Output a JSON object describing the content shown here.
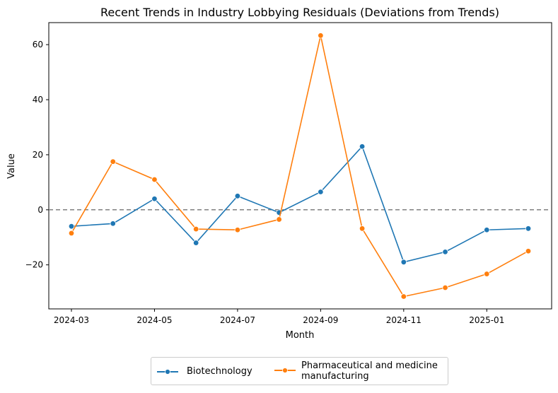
{
  "chart_data": {
    "type": "line",
    "title": "Recent Trends in Industry Lobbying Residuals (Deviations from Trends)",
    "xlabel": "Month",
    "ylabel": "Value",
    "x": [
      "2024-03",
      "2024-04",
      "2024-05",
      "2024-06",
      "2024-07",
      "2024-08",
      "2024-09",
      "2024-10",
      "2024-11",
      "2024-12",
      "2025-01",
      "2025-02"
    ],
    "x_ticks": [
      "2024-03",
      "2024-05",
      "2024-07",
      "2024-09",
      "2024-11",
      "2025-01"
    ],
    "y_ticks": [
      -20,
      0,
      20,
      40,
      60
    ],
    "y_tick_labels": [
      "−20",
      "0",
      "20",
      "40",
      "60"
    ],
    "ylim": [
      -36,
      68
    ],
    "grid": false,
    "reference_line": {
      "y": 0,
      "style": "dashed",
      "color": "#808080"
    },
    "legend_position": "bottom-center",
    "series": [
      {
        "name": "Biotechnology",
        "color": "#1f77b4",
        "values": [
          -6.0,
          -5.0,
          4.0,
          -12.0,
          5.0,
          -1.0,
          6.5,
          23.0,
          -19.0,
          -15.3,
          -7.3,
          -6.8
        ]
      },
      {
        "name": "Pharmaceutical and medicine manufacturing",
        "color": "#ff7f0e",
        "values": [
          -8.5,
          17.5,
          11.0,
          -7.0,
          -7.3,
          -3.5,
          63.3,
          -6.8,
          -31.5,
          -28.3,
          -23.3,
          -15.0
        ]
      }
    ]
  },
  "legend": {
    "items": [
      {
        "label_lines": [
          "Biotechnology"
        ]
      },
      {
        "label_lines": [
          "Pharmaceutical and medicine",
          "manufacturing"
        ]
      }
    ]
  }
}
